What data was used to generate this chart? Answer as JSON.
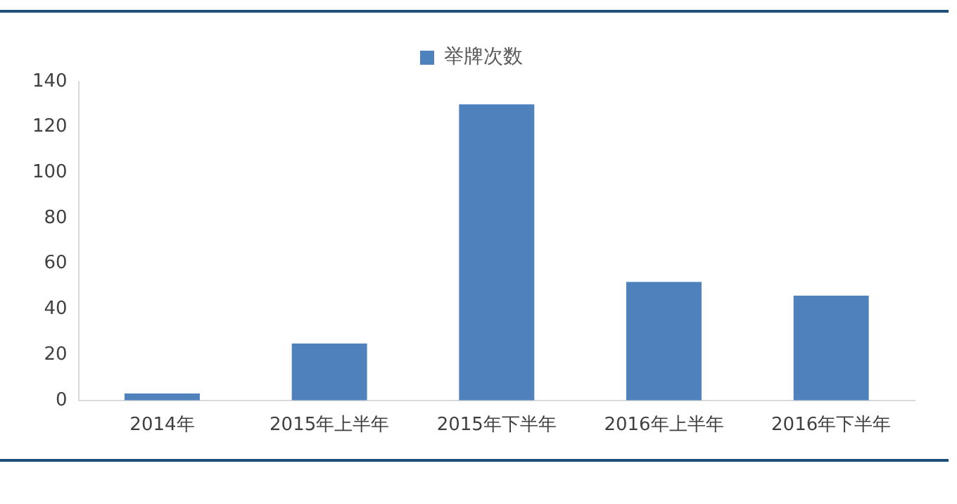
{
  "chart_data": {
    "type": "bar",
    "categories": [
      "2014年",
      "2015年上半年",
      "2015年下半年",
      "2016年上半年",
      "2016年下半年"
    ],
    "series": [
      {
        "name": "举牌次数",
        "color": "#4f81bd",
        "values": [
          3,
          25,
          130,
          52,
          46
        ]
      }
    ],
    "ylim": [
      0,
      140
    ],
    "yticks": [
      0,
      20,
      40,
      60,
      80,
      100,
      120,
      140
    ],
    "grid": false,
    "legend": "top"
  }
}
